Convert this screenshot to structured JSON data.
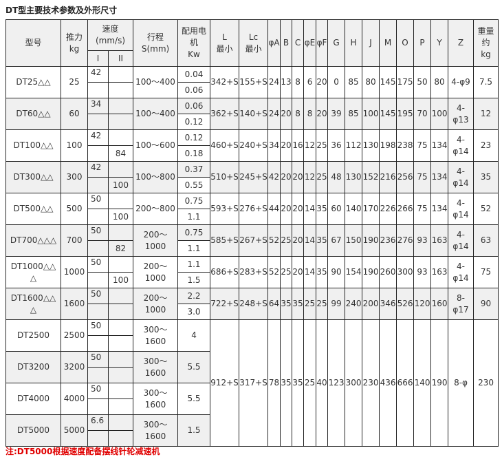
{
  "title": "DT型主要技术参数及外形尺寸",
  "header": {
    "model": "型号",
    "thrust": [
      "推力",
      "kg"
    ],
    "speed": [
      "速度",
      "(mm/s)"
    ],
    "speed_i": "I",
    "speed_ii": "II",
    "stroke": [
      "行程",
      "S(mm)"
    ],
    "motor": [
      "配用电",
      "机",
      "Kw"
    ],
    "L": [
      "L",
      "最小"
    ],
    "Lc": [
      "Lc",
      "最小"
    ],
    "dims": [
      "φA",
      "B",
      "C",
      "φE",
      "φF",
      "G",
      "H",
      "J",
      "M",
      "O",
      "P",
      "Y",
      "Z"
    ],
    "weight": [
      "重量",
      "约",
      "kg"
    ]
  },
  "rows": [
    {
      "model": [
        "DT25△△"
      ],
      "thrust": "25",
      "i": [
        "42",
        ""
      ],
      "ii": [
        "",
        ""
      ],
      "stroke": [
        "100～400"
      ],
      "power": [
        "0.04",
        "0.06"
      ],
      "L": "342+S",
      "Lc": "155+S",
      "dims": [
        "24",
        "13",
        "8",
        "6",
        "20",
        "0",
        "85",
        "80",
        "145",
        "175",
        "50",
        "80"
      ],
      "Z": [
        "4-φ9"
      ],
      "weight": "7.5"
    },
    {
      "model": [
        "DT60△△"
      ],
      "thrust": "60",
      "i": [
        "34",
        ""
      ],
      "ii": [
        "",
        ""
      ],
      "stroke": [
        "100～400"
      ],
      "power": [
        "0.06",
        "0.12"
      ],
      "L": "362+S",
      "Lc": "140+S",
      "dims": [
        "24",
        "20",
        "8",
        "8",
        "20",
        "39",
        "85",
        "100",
        "145",
        "195",
        "70",
        "100"
      ],
      "Z": [
        "4-",
        "φ13"
      ],
      "weight": "12"
    },
    {
      "model": [
        "DT100△△"
      ],
      "thrust": "100",
      "i": [
        "42",
        ""
      ],
      "ii": [
        "",
        "84"
      ],
      "stroke": [
        "100～600"
      ],
      "power": [
        "0.12",
        "0.18"
      ],
      "L": "460+S",
      "Lc": "240+S",
      "dims": [
        "34",
        "20",
        "16",
        "12",
        "25",
        "36",
        "112",
        "130",
        "198",
        "238",
        "75",
        "134"
      ],
      "Z": [
        "4-",
        "φ14"
      ],
      "weight": "23"
    },
    {
      "model": [
        "DT300△△"
      ],
      "thrust": "300",
      "i": [
        "42",
        ""
      ],
      "ii": [
        "",
        "100"
      ],
      "stroke": [
        "100～800"
      ],
      "power": [
        "0.37",
        "0.55"
      ],
      "L": "510+S",
      "Lc": "245+S",
      "dims": [
        "42",
        "20",
        "20",
        "12",
        "25",
        "48",
        "130",
        "152",
        "216",
        "256",
        "75",
        "134"
      ],
      "Z": [
        "4-",
        "φ14"
      ],
      "weight": "35"
    },
    {
      "model": [
        "DT500△△"
      ],
      "thrust": "500",
      "i": [
        "50",
        ""
      ],
      "ii": [
        "",
        "100"
      ],
      "stroke": [
        "200～800"
      ],
      "power": [
        "0.75",
        "1.1"
      ],
      "L": "593+S",
      "Lc": "276+S",
      "dims": [
        "44",
        "20",
        "20",
        "14",
        "35",
        "60",
        "140",
        "170",
        "226",
        "266",
        "75",
        "134"
      ],
      "Z": [
        "4-",
        "φ14"
      ],
      "weight": "52"
    },
    {
      "model": [
        "DT700△△△"
      ],
      "thrust": "700",
      "i": [
        "50",
        ""
      ],
      "ii": [
        "",
        "82"
      ],
      "stroke": [
        "200～",
        "1000"
      ],
      "power": [
        "0.75",
        "1.1"
      ],
      "L": "585+S",
      "Lc": "267+S",
      "dims": [
        "52",
        "25",
        "20",
        "14",
        "35",
        "67",
        "150",
        "190",
        "236",
        "276",
        "93",
        "163"
      ],
      "Z": [
        "4-",
        "φ14"
      ],
      "weight": "63"
    },
    {
      "model": [
        "DT1000△△",
        "△"
      ],
      "thrust": "1000",
      "i": [
        "50",
        ""
      ],
      "ii": [
        "",
        "100"
      ],
      "stroke": [
        "200～",
        "1000"
      ],
      "power": [
        "1.1",
        "1.5"
      ],
      "L": "686+S",
      "Lc": "283+S",
      "dims": [
        "52",
        "25",
        "20",
        "14",
        "35",
        "90",
        "154",
        "190",
        "260",
        "300",
        "93",
        "163"
      ],
      "Z": [
        "4-",
        "φ14"
      ],
      "weight": "75"
    },
    {
      "model": [
        "DT1600△△",
        "△"
      ],
      "thrust": "1600",
      "i": [
        "50",
        ""
      ],
      "ii": [
        "",
        ""
      ],
      "stroke": [
        "200～",
        "1000"
      ],
      "power": [
        "2.2",
        "3.0"
      ],
      "L": "722+S",
      "Lc": "248+S",
      "dims": [
        "64",
        "35",
        "35",
        "25",
        "25",
        "99",
        "240",
        "200",
        "346",
        "526",
        "120",
        "160"
      ],
      "Z": [
        "8-",
        "φ17"
      ],
      "weight": "90"
    },
    {
      "model": [
        "DT2500"
      ],
      "thrust": "2500",
      "i": [
        "50",
        ""
      ],
      "ii": [
        "",
        ""
      ],
      "stroke": [
        "300～",
        "1600"
      ],
      "power": [
        "4"
      ],
      "L": "912+S",
      "Lc": "317+S",
      "dims": [
        "78",
        "35",
        "35",
        "25",
        "40",
        "123",
        "300",
        "230",
        "436",
        "666",
        "140",
        "190"
      ],
      "Z": [
        "8-φ"
      ],
      "weight": "230",
      "span": 8
    },
    {
      "model": [
        "DT3200"
      ],
      "thrust": "3200",
      "i": [
        "50",
        ""
      ],
      "ii": [
        "",
        ""
      ],
      "stroke": [
        "300～",
        "1600"
      ],
      "power": [
        "5.5"
      ],
      "merged": true
    },
    {
      "model": [
        "DT4000"
      ],
      "thrust": "4000",
      "i": [
        "50",
        ""
      ],
      "ii": [
        "",
        ""
      ],
      "stroke": [
        "300～",
        "1600"
      ],
      "power": [
        "5.5"
      ],
      "merged": true
    },
    {
      "model": [
        "DT5000"
      ],
      "thrust": "5000",
      "i": [
        "6.6",
        ""
      ],
      "ii": [
        "",
        ""
      ],
      "stroke": [
        "300～",
        "1600"
      ],
      "power": [
        "1.5"
      ],
      "merged": true
    }
  ],
  "note": "注:DT5000根据速度配备摆线针轮减速机",
  "colors": {
    "border": "#222222",
    "header_bg": "#f0f0f0",
    "alt_row_bg": "#f0f0f0",
    "note": "#e00000"
  }
}
